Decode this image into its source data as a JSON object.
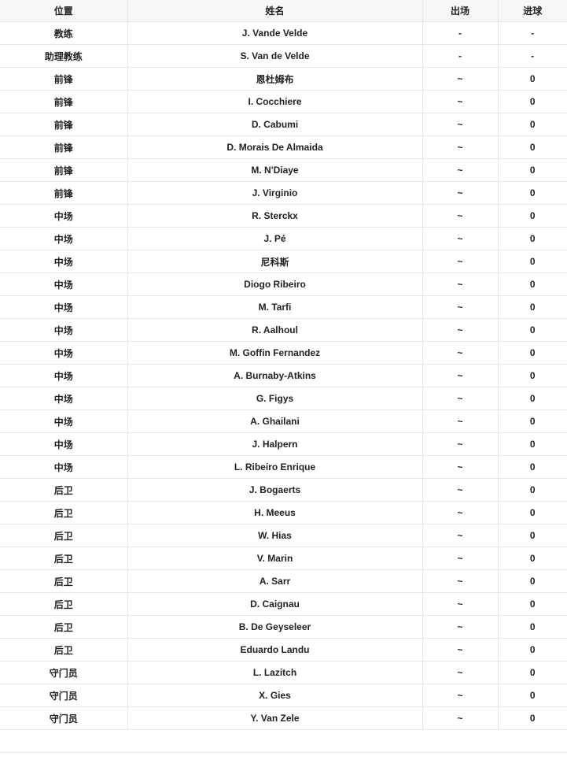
{
  "table": {
    "headers": [
      "位置",
      "姓名",
      "出场",
      "进球"
    ],
    "rows": [
      [
        "教练",
        "J. Vande Velde",
        "-",
        "-"
      ],
      [
        "助理教练",
        "S. Van de Velde",
        "-",
        "-"
      ],
      [
        "前锋",
        "恩杜姆布",
        "~",
        "0"
      ],
      [
        "前锋",
        "I. Cocchiere",
        "~",
        "0"
      ],
      [
        "前锋",
        "D. Cabumi",
        "~",
        "0"
      ],
      [
        "前锋",
        "D. Morais De Almaida",
        "~",
        "0"
      ],
      [
        "前锋",
        "M. N'Diaye",
        "~",
        "0"
      ],
      [
        "前锋",
        "J. Virginio",
        "~",
        "0"
      ],
      [
        "中场",
        "R. Sterckx",
        "~",
        "0"
      ],
      [
        "中场",
        "J. Pé",
        "~",
        "0"
      ],
      [
        "中场",
        "尼科斯",
        "~",
        "0"
      ],
      [
        "中场",
        "Diogo Ribeiro",
        "~",
        "0"
      ],
      [
        "中场",
        "M. Tarfi",
        "~",
        "0"
      ],
      [
        "中场",
        "R. Aalhoul",
        "~",
        "0"
      ],
      [
        "中场",
        "M. Goffin Fernandez",
        "~",
        "0"
      ],
      [
        "中场",
        "A. Burnaby-Atkins",
        "~",
        "0"
      ],
      [
        "中场",
        "G. Figys",
        "~",
        "0"
      ],
      [
        "中场",
        "A. Ghailani",
        "~",
        "0"
      ],
      [
        "中场",
        "J. Halpern",
        "~",
        "0"
      ],
      [
        "中场",
        "L. Ribeiro Enrique",
        "~",
        "0"
      ],
      [
        "后卫",
        "J. Bogaerts",
        "~",
        "0"
      ],
      [
        "后卫",
        "H. Meeus",
        "~",
        "0"
      ],
      [
        "后卫",
        "W. Hias",
        "~",
        "0"
      ],
      [
        "后卫",
        "V. Marin",
        "~",
        "0"
      ],
      [
        "后卫",
        "A. Sarr",
        "~",
        "0"
      ],
      [
        "后卫",
        "D. Caignau",
        "~",
        "0"
      ],
      [
        "后卫",
        "B. De Geyseleer",
        "~",
        "0"
      ],
      [
        "后卫",
        "Eduardo Landu",
        "~",
        "0"
      ],
      [
        "守门员",
        "L. Lazitch",
        "~",
        "0"
      ],
      [
        "守门员",
        "X. Gies",
        "~",
        "0"
      ],
      [
        "守门员",
        "Y. Van Zele",
        "~",
        "0"
      ]
    ]
  }
}
